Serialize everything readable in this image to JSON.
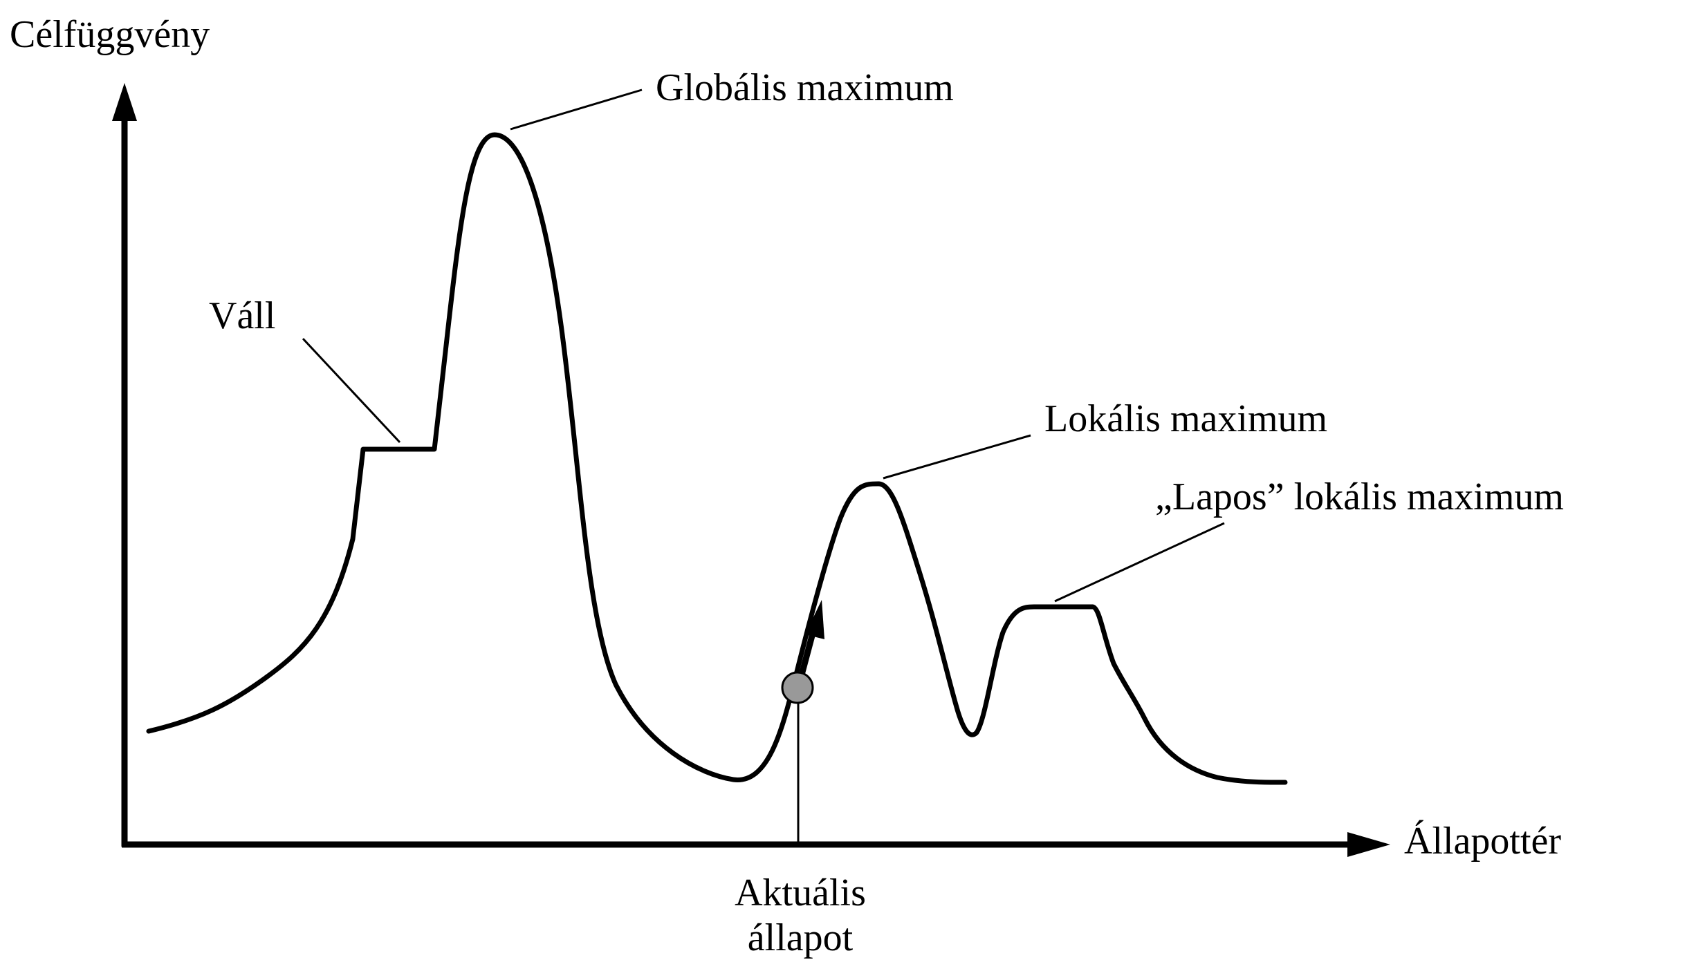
{
  "labels": {
    "y_axis": "Célfüggvény",
    "x_axis": "Állapottér",
    "global_max": "Globális maximum",
    "shoulder": "Váll",
    "local_max": "Lokális maximum",
    "flat_local_max": "„Lapos” lokális maximum",
    "current_state_line1": "Aktuális",
    "current_state_line2": "állapot"
  },
  "colors": {
    "stroke": "#000000",
    "current_state_marker": "#999999"
  }
}
